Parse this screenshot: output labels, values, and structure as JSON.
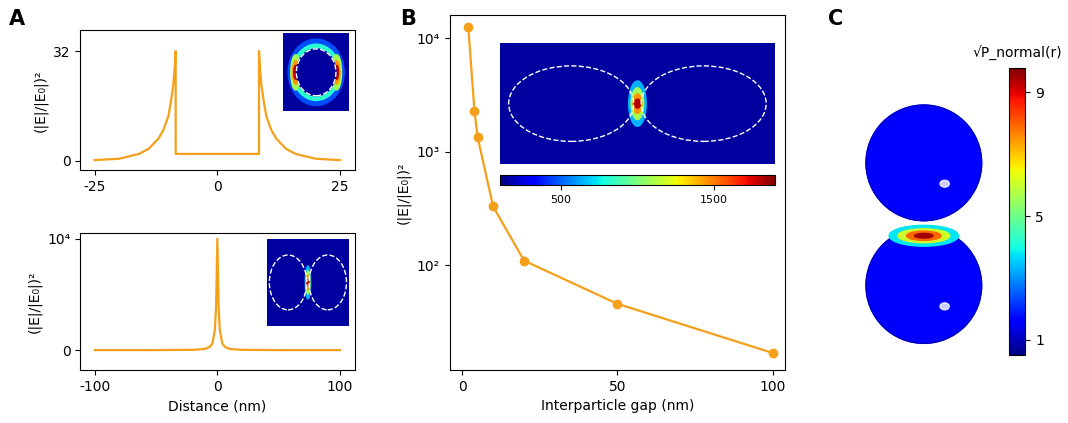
{
  "chart_data": [
    {
      "type": "line",
      "annotation": "A",
      "ylabel": "(|E|/|E₀|)²",
      "color": "#f5a01a",
      "x": [
        -25,
        -20,
        -16,
        -14,
        -12,
        -11,
        -10,
        -9.5,
        -9,
        -8.7,
        -8.5,
        -8.5,
        -4,
        0,
        4,
        8.5,
        8.5,
        8.7,
        9,
        9.5,
        10,
        11,
        12,
        14,
        16,
        20,
        25
      ],
      "values": [
        0.2,
        0.6,
        2,
        3.5,
        6.5,
        9,
        13,
        17,
        22,
        27,
        32,
        2,
        2,
        2,
        2,
        2,
        32,
        27,
        22,
        17,
        13,
        9,
        6.5,
        3.5,
        2,
        0.6,
        0.2
      ],
      "xlim": [
        -28,
        28
      ],
      "xticks": [
        -25,
        0,
        25
      ],
      "ylim": [
        -2.7,
        38
      ],
      "yticks": [
        0,
        32
      ]
    },
    {
      "type": "line",
      "xlabel": "Distance (nm)",
      "ylabel": "(|E|/|E₀|)²",
      "color": "#f5a01a",
      "x": [
        -100,
        -50,
        -20,
        -10,
        -6,
        -4,
        -2,
        -1,
        0,
        1,
        2,
        4,
        6,
        10,
        20,
        50,
        100
      ],
      "values": [
        0,
        0,
        20,
        100,
        300,
        600,
        1800,
        4000,
        10000,
        4000,
        1800,
        600,
        300,
        100,
        20,
        0,
        0
      ],
      "xlim": [
        -112,
        112
      ],
      "xticks": [
        -100,
        0,
        100
      ],
      "ylim": [
        -1800,
        10500
      ],
      "yticks": [
        0,
        {
          "value": 10000,
          "label": "10⁴"
        }
      ]
    },
    {
      "type": "line",
      "annotation": "B",
      "xlabel": "Interparticle gap (nm)",
      "ylabel": "(|E|/|E₀|)²",
      "color": "#f5a01a",
      "marker": "o",
      "log": "y",
      "x": [
        2,
        4,
        5,
        10,
        20,
        50,
        100
      ],
      "values": [
        12500,
        2300,
        1350,
        330,
        110,
        46,
        17
      ],
      "xlim": [
        -4,
        104
      ],
      "xticks": [
        0,
        50,
        100
      ],
      "ylim": [
        12,
        16000
      ],
      "yticks": [
        {
          "value": 100,
          "label": "10²"
        },
        {
          "value": 1000,
          "label": "10³"
        },
        {
          "value": 10000,
          "label": "10⁴"
        }
      ],
      "colorbar_lim": [
        100,
        1900
      ],
      "colorbar_ticks": [
        500,
        1500
      ]
    },
    {
      "type": "surface",
      "annotation": "C",
      "colorbar_label": "√P_normal(r)",
      "colorbar_lim": [
        0.5,
        9.8
      ],
      "colorbar_ticks": [
        1,
        5,
        9
      ]
    }
  ]
}
